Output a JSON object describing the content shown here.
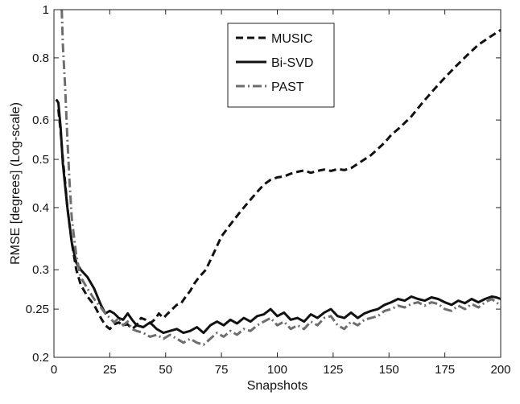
{
  "chart_data": {
    "type": "line",
    "xlabel": "Snapshots",
    "ylabel": "RMSE [degrees] (Log-scale)",
    "xlim": [
      0,
      200
    ],
    "ylim": [
      0.2,
      1
    ],
    "y_scale": "log",
    "grid": false,
    "legend_position": "top-center",
    "x_ticks": [
      0,
      25,
      50,
      75,
      100,
      125,
      150,
      175,
      200
    ],
    "y_ticks": [
      0.2,
      0.25,
      0.3,
      0.4,
      0.5,
      0.6,
      0.8,
      1
    ],
    "y_tick_labels": [
      "0.2",
      "0.25",
      "0.3",
      "0.4",
      "0.5",
      "0.6",
      "0.8",
      "1"
    ],
    "series": [
      {
        "name": "MUSIC",
        "color": "#111111",
        "style": "dashed",
        "x": [
          2,
          3,
          4,
          5,
          6,
          8,
          10,
          12,
          15,
          18,
          21,
          23,
          25,
          27,
          29,
          31,
          33,
          35,
          37,
          39,
          41,
          43,
          45,
          47,
          49,
          51,
          53,
          55,
          57,
          59,
          61,
          63,
          65,
          68,
          71,
          75,
          79,
          83,
          87,
          91,
          94,
          97,
          100,
          103,
          106,
          109,
          112,
          115,
          118,
          121,
          124,
          127,
          130,
          133,
          136,
          139,
          142,
          145,
          148,
          151,
          155,
          160,
          165,
          170,
          175,
          180,
          185,
          190,
          195,
          200
        ],
        "y": [
          0.63,
          0.57,
          0.5,
          0.45,
          0.4,
          0.34,
          0.3,
          0.28,
          0.265,
          0.255,
          0.24,
          0.232,
          0.228,
          0.233,
          0.235,
          0.232,
          0.233,
          0.228,
          0.232,
          0.24,
          0.238,
          0.234,
          0.238,
          0.245,
          0.24,
          0.245,
          0.25,
          0.255,
          0.257,
          0.265,
          0.272,
          0.282,
          0.29,
          0.3,
          0.32,
          0.35,
          0.37,
          0.39,
          0.41,
          0.43,
          0.445,
          0.455,
          0.46,
          0.462,
          0.468,
          0.472,
          0.475,
          0.47,
          0.474,
          0.477,
          0.474,
          0.478,
          0.476,
          0.48,
          0.49,
          0.5,
          0.51,
          0.525,
          0.54,
          0.56,
          0.58,
          0.61,
          0.65,
          0.69,
          0.73,
          0.77,
          0.81,
          0.85,
          0.88,
          0.91
        ]
      },
      {
        "name": "Bi-SVD",
        "color": "#111111",
        "style": "solid",
        "x": [
          1,
          2,
          3,
          4,
          6,
          8,
          10,
          12,
          15,
          18,
          21,
          23,
          25,
          27,
          29,
          31,
          33,
          35,
          37,
          40,
          43,
          46,
          49,
          52,
          55,
          58,
          61,
          64,
          67,
          70,
          73,
          76,
          79,
          82,
          85,
          88,
          91,
          94,
          97,
          100,
          103,
          106,
          109,
          112,
          115,
          118,
          121,
          124,
          127,
          130,
          133,
          136,
          139,
          142,
          145,
          148,
          151,
          154,
          157,
          160,
          163,
          166,
          169,
          172,
          175,
          178,
          181,
          184,
          187,
          190,
          193,
          196,
          198,
          200
        ],
        "y": [
          0.66,
          0.65,
          0.58,
          0.49,
          0.4,
          0.34,
          0.31,
          0.3,
          0.29,
          0.275,
          0.255,
          0.245,
          0.248,
          0.245,
          0.24,
          0.238,
          0.245,
          0.238,
          0.232,
          0.23,
          0.235,
          0.228,
          0.224,
          0.226,
          0.228,
          0.224,
          0.226,
          0.23,
          0.224,
          0.232,
          0.236,
          0.232,
          0.238,
          0.234,
          0.24,
          0.236,
          0.242,
          0.244,
          0.25,
          0.242,
          0.246,
          0.238,
          0.24,
          0.236,
          0.244,
          0.24,
          0.246,
          0.25,
          0.242,
          0.24,
          0.246,
          0.24,
          0.245,
          0.248,
          0.25,
          0.255,
          0.258,
          0.262,
          0.26,
          0.265,
          0.262,
          0.26,
          0.264,
          0.262,
          0.258,
          0.255,
          0.26,
          0.257,
          0.262,
          0.258,
          0.262,
          0.265,
          0.264,
          0.262
        ]
      },
      {
        "name": "PAST",
        "color": "#6e6e6e",
        "style": "dashdot",
        "x": [
          3.5,
          4,
          5,
          6,
          7,
          8,
          10,
          12,
          15,
          18,
          21,
          23,
          25,
          27,
          29,
          31,
          33,
          35,
          37,
          40,
          43,
          46,
          49,
          52,
          55,
          58,
          61,
          64,
          67,
          70,
          73,
          76,
          79,
          82,
          85,
          88,
          91,
          94,
          97,
          100,
          103,
          106,
          109,
          112,
          115,
          118,
          121,
          124,
          127,
          130,
          133,
          136,
          139,
          142,
          145,
          148,
          151,
          154,
          157,
          160,
          163,
          166,
          169,
          172,
          175,
          178,
          181,
          184,
          187,
          190,
          193,
          196,
          198,
          200
        ],
        "y": [
          1.0,
          0.85,
          0.7,
          0.55,
          0.45,
          0.38,
          0.32,
          0.29,
          0.275,
          0.262,
          0.252,
          0.245,
          0.24,
          0.235,
          0.24,
          0.232,
          0.236,
          0.228,
          0.226,
          0.224,
          0.22,
          0.222,
          0.218,
          0.222,
          0.218,
          0.214,
          0.218,
          0.214,
          0.212,
          0.218,
          0.224,
          0.22,
          0.226,
          0.222,
          0.228,
          0.226,
          0.232,
          0.236,
          0.24,
          0.232,
          0.236,
          0.228,
          0.232,
          0.228,
          0.236,
          0.232,
          0.24,
          0.242,
          0.232,
          0.228,
          0.236,
          0.232,
          0.238,
          0.24,
          0.242,
          0.248,
          0.25,
          0.254,
          0.252,
          0.256,
          0.258,
          0.254,
          0.258,
          0.256,
          0.25,
          0.248,
          0.254,
          0.25,
          0.256,
          0.252,
          0.258,
          0.262,
          0.258,
          0.254
        ]
      }
    ]
  }
}
